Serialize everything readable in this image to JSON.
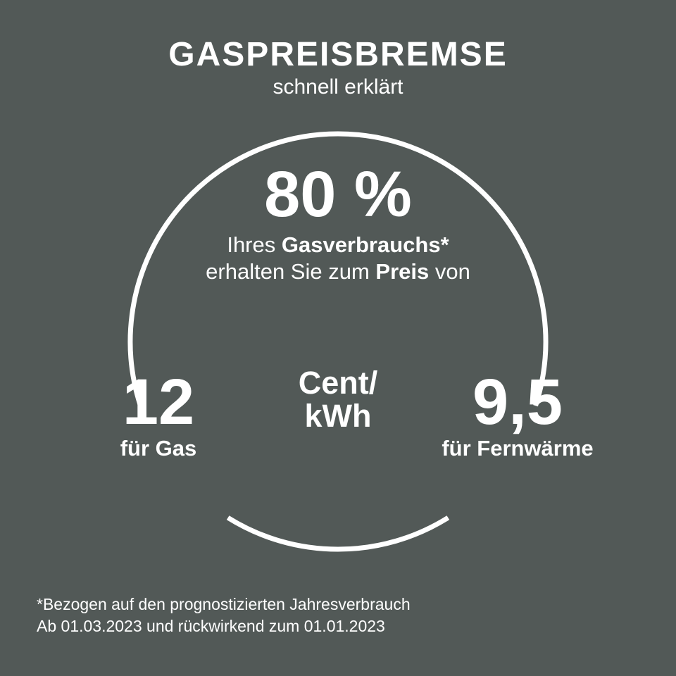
{
  "colors": {
    "background": "#525957",
    "text": "#ffffff",
    "circle_stroke": "#ffffff"
  },
  "title": "GASPREISBREMSE",
  "subtitle": "schnell erklärt",
  "circle": {
    "stroke_width": 7,
    "radius": 295,
    "gap_left": {
      "start_deg": 198,
      "end_deg": 238
    },
    "gap_right": {
      "start_deg": 302,
      "end_deg": 342
    }
  },
  "percent": "80 %",
  "desc_line1_pre": "Ihres ",
  "desc_line1_bold": "Gasverbrauchs*",
  "desc_line2_pre": "erhalten Sie zum ",
  "desc_line2_bold": "Preis",
  "desc_line2_post": " von",
  "unit_line1": "Cent/",
  "unit_line2": "kWh",
  "left": {
    "value": "12",
    "label": "für Gas"
  },
  "right": {
    "value": "9,5",
    "label": "für Fernwärme"
  },
  "footnote_line1": "*Bezogen auf den prognostizierten Jahresverbrauch",
  "footnote_line2": "Ab 01.03.2023 und rückwirkend zum 01.01.2023"
}
